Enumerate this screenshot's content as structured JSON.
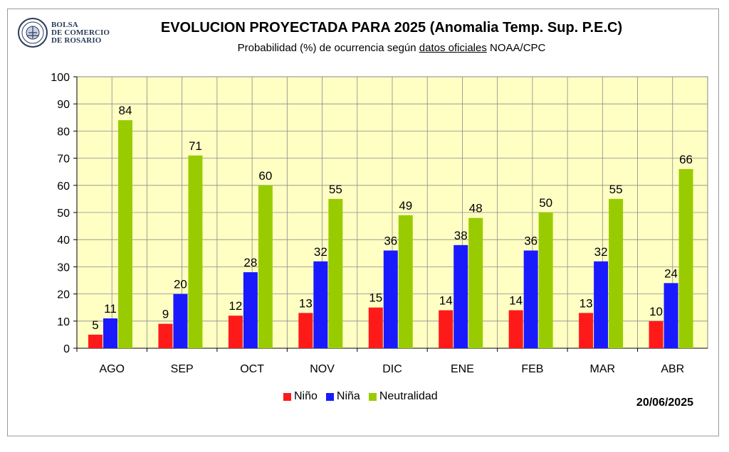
{
  "logo": {
    "line1": "BOLSA",
    "line2": "DE COMERCIO",
    "line3": "DE ROSARIO"
  },
  "date": "20/06/2025",
  "subtitle_parts": {
    "before": "Probabilidad (%) de ocurrencia según ",
    "underlined": "datos oficiales",
    "after": " NOAA/CPC"
  },
  "colors": {
    "plot_bg": "#FFFFC4",
    "grid": "#8a8a8a",
    "nino": "#FF1A1A",
    "nina": "#1A1AFF",
    "neutral": "#99CC00"
  },
  "chart_data": {
    "type": "bar",
    "title": "EVOLUCION PROYECTADA PARA 2025 (Anomalia Temp. Sup. P.E.C)",
    "subtitle": "Probabilidad (%) de ocurrencia según datos oficiales NOAA/CPC",
    "categories": [
      "AGO",
      "SEP",
      "OCT",
      "NOV",
      "DIC",
      "ENE",
      "FEB",
      "MAR",
      "ABR"
    ],
    "series": [
      {
        "name": "Niño",
        "values": [
          5,
          9,
          12,
          13,
          15,
          14,
          14,
          13,
          10
        ]
      },
      {
        "name": "Niña",
        "values": [
          11,
          20,
          28,
          32,
          36,
          38,
          36,
          32,
          24
        ]
      },
      {
        "name": "Neutralidad",
        "values": [
          84,
          71,
          60,
          55,
          49,
          48,
          50,
          55,
          66
        ]
      }
    ],
    "ylim": [
      0,
      100
    ],
    "yticks": [
      0,
      10,
      20,
      30,
      40,
      50,
      60,
      70,
      80,
      90,
      100
    ],
    "xlabel": "",
    "ylabel": "",
    "grid": true,
    "legend": "bottom"
  }
}
